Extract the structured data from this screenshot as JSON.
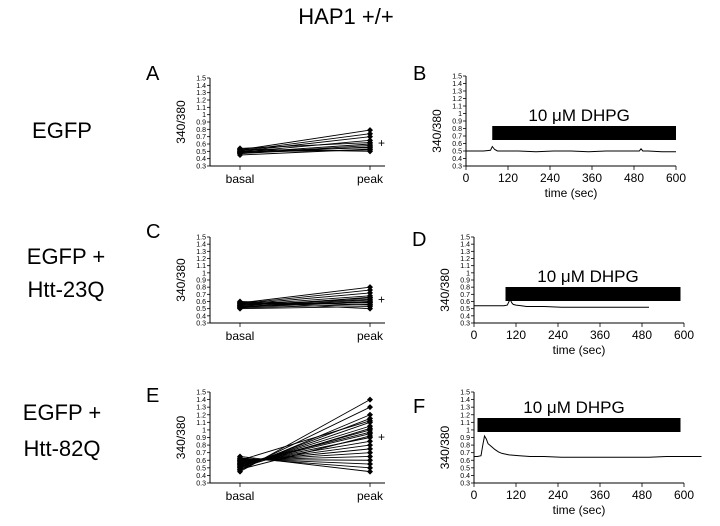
{
  "figure": {
    "title": "HAP1   +/+",
    "row_labels": [
      [
        "EGFP"
      ],
      [
        "EGFP +",
        "Htt-23Q"
      ],
      [
        "EGFP +",
        "Htt-82Q"
      ]
    ]
  },
  "chart_data": [
    {
      "panel": "A",
      "type": "line",
      "row": 0,
      "col": 0,
      "ylabel": "340/380",
      "ylim": [
        0.3,
        1.5
      ],
      "yticks": [
        "0.3",
        "0.4",
        "0.5",
        "0.6",
        "0.7",
        "0.8",
        "0.9",
        "1",
        "1.1",
        "1.2",
        "1.3",
        "1.4",
        "1.5"
      ],
      "categories": [
        "basal",
        "peak"
      ],
      "marker_label": "+",
      "series": [
        {
          "values": [
            0.45,
            0.53
          ]
        },
        {
          "values": [
            0.47,
            0.56
          ]
        },
        {
          "values": [
            0.48,
            0.6
          ]
        },
        {
          "values": [
            0.49,
            0.65
          ]
        },
        {
          "values": [
            0.5,
            0.7
          ]
        },
        {
          "values": [
            0.51,
            0.74
          ]
        },
        {
          "values": [
            0.52,
            0.79
          ]
        },
        {
          "values": [
            0.53,
            0.5
          ]
        },
        {
          "values": [
            0.5,
            0.55
          ]
        },
        {
          "values": [
            0.47,
            0.58
          ]
        },
        {
          "values": [
            0.49,
            0.52
          ]
        },
        {
          "values": [
            0.54,
            0.62
          ]
        }
      ]
    },
    {
      "panel": "B",
      "type": "line",
      "row": 0,
      "col": 1,
      "ylabel": "340/380",
      "xlabel": "time (sec)",
      "ylim": [
        0.3,
        1.5
      ],
      "xlim": [
        0,
        600
      ],
      "yticks": [
        "0.3",
        "0.4",
        "0.5",
        "0.6",
        "0.7",
        "0.8",
        "0.9",
        "1",
        "1.1",
        "1.2",
        "1.3",
        "1.4",
        "1.5"
      ],
      "xticks": [
        "0",
        "120",
        "240",
        "360",
        "480",
        "600"
      ],
      "bar": {
        "label": "10 μM DHPG",
        "start": 75,
        "end": 600
      },
      "series": [
        {
          "x": [
            0,
            50,
            70,
            75,
            82,
            90,
            100,
            150,
            200,
            250,
            300,
            350,
            400,
            450,
            495,
            500,
            505,
            520,
            560,
            600
          ],
          "y": [
            0.5,
            0.5,
            0.51,
            0.56,
            0.52,
            0.5,
            0.5,
            0.5,
            0.49,
            0.5,
            0.5,
            0.49,
            0.5,
            0.5,
            0.5,
            0.53,
            0.5,
            0.5,
            0.49,
            0.49
          ]
        }
      ]
    },
    {
      "panel": "C",
      "type": "line",
      "row": 1,
      "col": 0,
      "ylabel": "340/380",
      "ylim": [
        0.3,
        1.5
      ],
      "yticks": [
        "0.3",
        "0.4",
        "0.5",
        "0.6",
        "0.7",
        "0.8",
        "0.9",
        "1",
        "1.1",
        "1.2",
        "1.3",
        "1.4",
        "1.5"
      ],
      "categories": [
        "basal",
        "peak"
      ],
      "marker_label": "+",
      "series": [
        {
          "values": [
            0.5,
            0.53
          ]
        },
        {
          "values": [
            0.51,
            0.56
          ]
        },
        {
          "values": [
            0.52,
            0.59
          ]
        },
        {
          "values": [
            0.53,
            0.62
          ]
        },
        {
          "values": [
            0.54,
            0.65
          ]
        },
        {
          "values": [
            0.55,
            0.68
          ]
        },
        {
          "values": [
            0.56,
            0.72
          ]
        },
        {
          "values": [
            0.57,
            0.76
          ]
        },
        {
          "values": [
            0.58,
            0.8
          ]
        },
        {
          "values": [
            0.59,
            0.5
          ]
        },
        {
          "values": [
            0.6,
            0.55
          ]
        },
        {
          "values": [
            0.53,
            0.6
          ]
        },
        {
          "values": [
            0.55,
            0.63
          ]
        },
        {
          "values": [
            0.57,
            0.58
          ]
        },
        {
          "values": [
            0.52,
            0.66
          ]
        }
      ]
    },
    {
      "panel": "D",
      "type": "line",
      "row": 1,
      "col": 1,
      "ylabel": "340/380",
      "xlabel": "time (sec)",
      "ylim": [
        0.3,
        1.5
      ],
      "xlim": [
        0,
        600
      ],
      "yticks": [
        "0.3",
        "0.4",
        "0.5",
        "0.6",
        "0.7",
        "0.8",
        "0.9",
        "1",
        "1.1",
        "1.2",
        "1.3",
        "1.4",
        "1.5"
      ],
      "xticks": [
        "0",
        "120",
        "240",
        "360",
        "480",
        "600"
      ],
      "bar": {
        "label": "10 μM DHPG",
        "start": 90,
        "end": 590
      },
      "series": [
        {
          "x": [
            0,
            50,
            85,
            95,
            100,
            103,
            108,
            112,
            120,
            135,
            150,
            200,
            250,
            300,
            400,
            480,
            500
          ],
          "y": [
            0.54,
            0.54,
            0.54,
            0.55,
            0.6,
            0.63,
            0.58,
            0.56,
            0.55,
            0.54,
            0.53,
            0.53,
            0.52,
            0.52,
            0.52,
            0.52,
            0.52
          ]
        }
      ]
    },
    {
      "panel": "E",
      "type": "line",
      "row": 2,
      "col": 0,
      "ylabel": "340/380",
      "ylim": [
        0.3,
        1.5
      ],
      "yticks": [
        "0.3",
        "0.4",
        "0.5",
        "0.6",
        "0.7",
        "0.8",
        "0.9",
        "1",
        "1.1",
        "1.2",
        "1.3",
        "1.4",
        "1.5"
      ],
      "categories": [
        "basal",
        "peak"
      ],
      "marker_label": "+",
      "series": [
        {
          "values": [
            0.45,
            1.4
          ]
        },
        {
          "values": [
            0.47,
            1.3
          ]
        },
        {
          "values": [
            0.48,
            1.2
          ]
        },
        {
          "values": [
            0.5,
            1.15
          ]
        },
        {
          "values": [
            0.51,
            1.1
          ]
        },
        {
          "values": [
            0.52,
            1.05
          ]
        },
        {
          "values": [
            0.53,
            1.0
          ]
        },
        {
          "values": [
            0.54,
            0.95
          ]
        },
        {
          "values": [
            0.55,
            0.9
          ]
        },
        {
          "values": [
            0.56,
            0.85
          ]
        },
        {
          "values": [
            0.57,
            0.8
          ]
        },
        {
          "values": [
            0.58,
            0.75
          ]
        },
        {
          "values": [
            0.59,
            0.7
          ]
        },
        {
          "values": [
            0.6,
            0.65
          ]
        },
        {
          "values": [
            0.61,
            0.6
          ]
        },
        {
          "values": [
            0.62,
            0.55
          ]
        },
        {
          "values": [
            0.63,
            0.5
          ]
        },
        {
          "values": [
            0.65,
            0.45
          ]
        },
        {
          "values": [
            0.5,
            1.02
          ]
        },
        {
          "values": [
            0.55,
            0.97
          ]
        },
        {
          "values": [
            0.6,
            1.12
          ]
        },
        {
          "values": [
            0.48,
            0.92
          ]
        }
      ]
    },
    {
      "panel": "F",
      "type": "line",
      "row": 2,
      "col": 1,
      "ylabel": "340/380",
      "xlabel": "time (sec)",
      "ylim": [
        0.3,
        1.5
      ],
      "xlim": [
        0,
        600
      ],
      "yticks": [
        "0.3",
        "0.4",
        "0.5",
        "0.6",
        "0.7",
        "0.8",
        "0.9",
        "1",
        "1.1",
        "1.2",
        "1.3",
        "1.4",
        "1.5"
      ],
      "xticks": [
        "0",
        "120",
        "240",
        "360",
        "480",
        "600"
      ],
      "bar": {
        "label": "10 μM DHPG",
        "start": 10,
        "end": 590
      },
      "series": [
        {
          "x": [
            0,
            10,
            20,
            25,
            30,
            35,
            40,
            50,
            60,
            70,
            80,
            100,
            130,
            160,
            200,
            250,
            300,
            350,
            400,
            450,
            500,
            550,
            600,
            650
          ],
          "y": [
            0.65,
            0.65,
            0.66,
            0.8,
            0.92,
            0.88,
            0.82,
            0.78,
            0.74,
            0.71,
            0.69,
            0.67,
            0.66,
            0.65,
            0.65,
            0.64,
            0.64,
            0.64,
            0.64,
            0.64,
            0.64,
            0.65,
            0.65,
            0.65
          ]
        }
      ]
    }
  ]
}
